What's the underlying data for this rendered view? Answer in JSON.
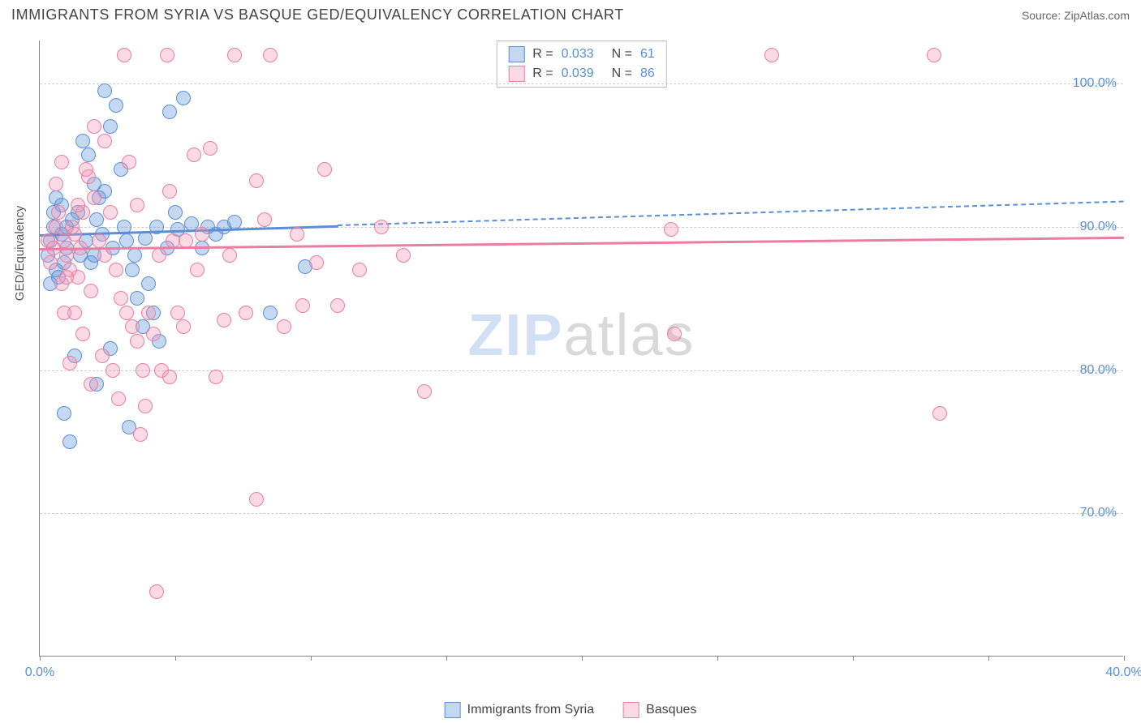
{
  "title": "IMMIGRANTS FROM SYRIA VS BASQUE GED/EQUIVALENCY CORRELATION CHART",
  "source": "Source: ZipAtlas.com",
  "ylabel": "GED/Equivalency",
  "watermark": {
    "bold": "ZIP",
    "rest": "atlas"
  },
  "chart": {
    "type": "scatter",
    "background_color": "#ffffff",
    "grid_color": "#cccccc",
    "axis_color": "#888888",
    "tick_label_color": "#5a8fd6",
    "tick_fontsize": 16,
    "xlim": [
      0,
      40
    ],
    "ylim": [
      60,
      103
    ],
    "xticks": [
      0,
      5,
      10,
      15,
      20,
      25,
      30,
      35,
      40
    ],
    "xtick_labels": {
      "0": "0.0%",
      "40": "40.0%"
    },
    "yticks": [
      70,
      80,
      90,
      100
    ],
    "ytick_labels": {
      "70": "70.0%",
      "80": "80.0%",
      "90": "90.0%",
      "100": "100.0%"
    },
    "marker_radius": 9,
    "marker_stroke_width": 1.5,
    "marker_fill_opacity": 0.35
  },
  "series": [
    {
      "name": "Immigrants from Syria",
      "color": "#5a8fd6",
      "fill": "rgba(90,143,214,0.35)",
      "stroke": "#5a8fd6",
      "R": "0.033",
      "N": "61",
      "trend": {
        "y_at_x0": 89.5,
        "y_at_x40": 91.8,
        "solid_until_x": 11,
        "line_width_solid": 3,
        "line_width_dashed": 2
      },
      "points": [
        [
          0.3,
          88
        ],
        [
          0.4,
          89
        ],
        [
          0.5,
          90
        ],
        [
          0.7,
          86.5
        ],
        [
          0.8,
          89.5
        ],
        [
          0.9,
          87.5
        ],
        [
          1.0,
          88.5
        ],
        [
          1.2,
          90.5
        ],
        [
          1.4,
          91
        ],
        [
          1.6,
          96
        ],
        [
          1.8,
          95
        ],
        [
          2.0,
          93
        ],
        [
          2.2,
          92
        ],
        [
          2.4,
          99.5
        ],
        [
          2.6,
          97
        ],
        [
          2.8,
          98.5
        ],
        [
          3.0,
          94
        ],
        [
          3.2,
          89
        ],
        [
          3.4,
          87
        ],
        [
          3.6,
          85
        ],
        [
          3.8,
          83
        ],
        [
          4.0,
          86
        ],
        [
          4.2,
          84
        ],
        [
          4.4,
          82
        ],
        [
          4.8,
          98
        ],
        [
          5.0,
          91
        ],
        [
          5.3,
          99
        ],
        [
          0.9,
          77
        ],
        [
          1.3,
          81
        ],
        [
          2.6,
          81.5
        ],
        [
          2.1,
          79
        ],
        [
          3.3,
          76
        ],
        [
          1.1,
          75
        ],
        [
          6.2,
          90
        ],
        [
          6.5,
          89.5
        ],
        [
          7.2,
          90.3
        ],
        [
          8.5,
          84
        ],
        [
          9.8,
          87.2
        ],
        [
          2.0,
          88
        ],
        [
          2.3,
          89.5
        ],
        [
          1.5,
          88
        ],
        [
          0.6,
          87
        ],
        [
          0.4,
          86
        ],
        [
          0.5,
          91
        ],
        [
          0.6,
          92
        ],
        [
          0.8,
          91.5
        ],
        [
          1.0,
          90
        ],
        [
          1.7,
          89
        ],
        [
          1.9,
          87.5
        ],
        [
          2.1,
          90.5
        ],
        [
          2.4,
          92.5
        ],
        [
          2.7,
          88.5
        ],
        [
          3.1,
          90
        ],
        [
          3.5,
          88
        ],
        [
          3.9,
          89.2
        ],
        [
          4.3,
          90
        ],
        [
          4.7,
          88.5
        ],
        [
          5.1,
          89.8
        ],
        [
          5.6,
          90.2
        ],
        [
          6.0,
          88.5
        ],
        [
          6.8,
          90
        ]
      ]
    },
    {
      "name": "Basques",
      "color": "#e97ea0",
      "fill": "rgba(245,150,180,0.35)",
      "stroke": "#e97ea0",
      "R": "0.039",
      "N": "86",
      "trend": {
        "y_at_x0": 88.5,
        "y_at_x40": 89.3,
        "solid_until_x": 40,
        "line_width_solid": 3
      },
      "points": [
        [
          0.3,
          89
        ],
        [
          0.4,
          87.5
        ],
        [
          0.5,
          88.5
        ],
        [
          0.6,
          90
        ],
        [
          0.7,
          91
        ],
        [
          0.8,
          86
        ],
        [
          0.9,
          89
        ],
        [
          1.0,
          88
        ],
        [
          1.1,
          87
        ],
        [
          1.2,
          90
        ],
        [
          1.3,
          89.5
        ],
        [
          1.4,
          86.5
        ],
        [
          1.5,
          88.5
        ],
        [
          1.6,
          91
        ],
        [
          1.8,
          93.5
        ],
        [
          2.0,
          92
        ],
        [
          2.2,
          89
        ],
        [
          2.4,
          88
        ],
        [
          2.6,
          91
        ],
        [
          2.8,
          87
        ],
        [
          3.0,
          85
        ],
        [
          3.2,
          84
        ],
        [
          3.4,
          83
        ],
        [
          3.6,
          82
        ],
        [
          3.8,
          80
        ],
        [
          4.0,
          84
        ],
        [
          4.2,
          82.5
        ],
        [
          4.5,
          80
        ],
        [
          4.8,
          79.5
        ],
        [
          5.1,
          84
        ],
        [
          5.4,
          89
        ],
        [
          5.7,
          95
        ],
        [
          6.0,
          89.5
        ],
        [
          6.3,
          95.5
        ],
        [
          6.8,
          83.5
        ],
        [
          7.2,
          102
        ],
        [
          7.6,
          84
        ],
        [
          8.0,
          93.2
        ],
        [
          8.5,
          102
        ],
        [
          9.0,
          83
        ],
        [
          9.5,
          89.5
        ],
        [
          10.2,
          87.5
        ],
        [
          11.0,
          84.5
        ],
        [
          11.8,
          87
        ],
        [
          12.6,
          90
        ],
        [
          13.4,
          88
        ],
        [
          14.2,
          78.5
        ],
        [
          23.3,
          89.8
        ],
        [
          23.4,
          82.5
        ],
        [
          27.0,
          102
        ],
        [
          33.0,
          102
        ],
        [
          33.2,
          77
        ],
        [
          3.1,
          102
        ],
        [
          4.7,
          102
        ],
        [
          2.0,
          97
        ],
        [
          3.3,
          94.5
        ],
        [
          2.9,
          78
        ],
        [
          3.7,
          75.5
        ],
        [
          4.3,
          64.5
        ],
        [
          8.0,
          71
        ],
        [
          1.9,
          85.5
        ],
        [
          2.3,
          81
        ],
        [
          2.7,
          80
        ],
        [
          1.3,
          84
        ],
        [
          1.6,
          82.5
        ],
        [
          1.9,
          79
        ],
        [
          0.9,
          84
        ],
        [
          1.1,
          80.5
        ],
        [
          3.9,
          77.5
        ],
        [
          5.3,
          83
        ],
        [
          6.5,
          79.5
        ],
        [
          4.4,
          88
        ],
        [
          4.9,
          89
        ],
        [
          5.8,
          87
        ],
        [
          7.0,
          88
        ],
        [
          8.3,
          90.5
        ],
        [
          9.7,
          84.5
        ],
        [
          10.5,
          94
        ],
        [
          0.6,
          93
        ],
        [
          0.8,
          94.5
        ],
        [
          1.7,
          94
        ],
        [
          2.4,
          96
        ],
        [
          3.6,
          91.5
        ],
        [
          4.8,
          92.5
        ],
        [
          1.0,
          86.5
        ],
        [
          1.4,
          91.5
        ]
      ]
    }
  ],
  "legend_bottom": [
    {
      "label": "Immigrants from Syria",
      "fill": "rgba(90,143,214,0.35)",
      "stroke": "#5a8fd6"
    },
    {
      "label": "Basques",
      "fill": "rgba(245,150,180,0.35)",
      "stroke": "#e97ea0"
    }
  ]
}
